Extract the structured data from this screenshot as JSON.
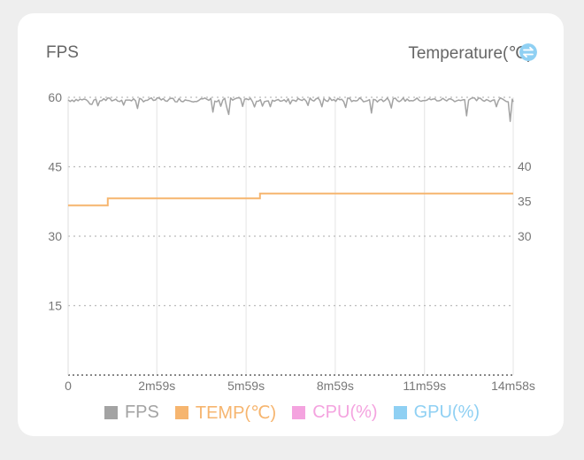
{
  "header": {
    "left_label": "FPS",
    "right_label": "Temperature(℃)",
    "toggle_icon": "swap-arrows-icon"
  },
  "colors": {
    "fps": "#a3a3a3",
    "temp": "#f6b56f",
    "cpu": "#f4a3df",
    "gpu": "#8fd0f3",
    "grid": "#bbbbbb",
    "axis_text": "#777777"
  },
  "chart_data": {
    "type": "line",
    "x": {
      "min_seconds": 0,
      "max_seconds": 898,
      "tick_labels": [
        "0",
        "2m59s",
        "5m59s",
        "8m59s",
        "11m59s",
        "14m58s"
      ],
      "tick_seconds": [
        0,
        179,
        359,
        539,
        719,
        898
      ]
    },
    "y_left": {
      "title": "FPS",
      "ylim": [
        0,
        60
      ],
      "ticks": [
        15,
        30,
        45,
        60
      ],
      "tick_labels": [
        "15",
        "30",
        "45",
        "60"
      ]
    },
    "y_right": {
      "title": "Temperature(℃)",
      "ticks": [
        30,
        35,
        40
      ],
      "tick_labels": [
        "30",
        "35",
        "40"
      ]
    },
    "series": [
      {
        "name": "FPS",
        "axis": "left",
        "approx_value": 59.5,
        "dips": [
          {
            "t": 292,
            "v": 56.8
          },
          {
            "t": 325,
            "v": 56.3
          },
          {
            "t": 610,
            "v": 56.6
          },
          {
            "t": 805,
            "v": 56.0
          },
          {
            "t": 893,
            "v": 54.8
          }
        ]
      },
      {
        "name": "TEMP(℃)",
        "axis": "right",
        "points": [
          [
            0,
            34.4
          ],
          [
            80,
            34.4
          ],
          [
            80,
            35.4
          ],
          [
            387,
            35.4
          ],
          [
            387,
            36.1
          ],
          [
            898,
            36.1
          ]
        ]
      },
      {
        "name": "CPU(%)",
        "points": []
      },
      {
        "name": "GPU(%)",
        "points": []
      }
    ],
    "grid": true,
    "legend_position": "bottom"
  },
  "legend": [
    {
      "label": "FPS"
    },
    {
      "label": "TEMP(℃)"
    },
    {
      "label": "CPU(%)"
    },
    {
      "label": "GPU(%)"
    }
  ]
}
